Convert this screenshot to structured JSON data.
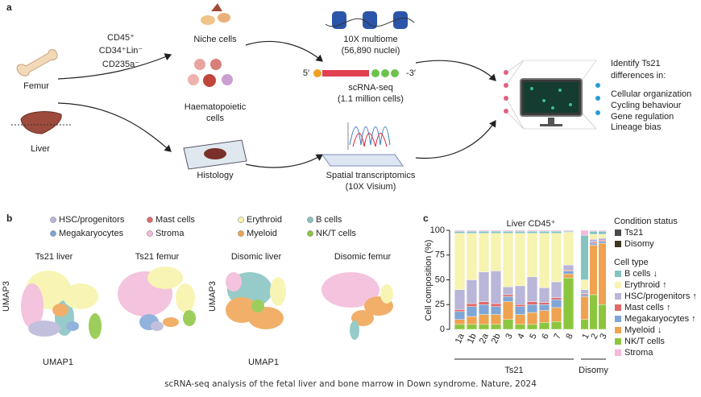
{
  "panel_a": {
    "label": "a",
    "femur": "Femur",
    "liver": "Liver",
    "markers": [
      "CD45⁺",
      "CD34⁺Lin⁻",
      "CD235a⁻"
    ],
    "niche": "Niche cells",
    "haem": [
      "Haematopoietic",
      "cells"
    ],
    "histology": "Histology",
    "multiome": [
      "10X multiome",
      "(56,890 nuclei)"
    ],
    "prime5": "5′",
    "prime3": "-3′",
    "scrna": [
      "scRNA-seq",
      "(1.1 million cells)"
    ],
    "spatial": [
      "Spatial transcriptomics",
      "(10X Visium)"
    ],
    "identify": [
      "Identify Ts21",
      "differences in:"
    ],
    "differences": [
      "Cellular organization",
      "Cycling behaviour",
      "Gene regulation",
      "Lineage bias"
    ]
  },
  "panel_b": {
    "label": "b",
    "legend": [
      {
        "name": "HSC/progenitors",
        "color": "#b9b6d9"
      },
      {
        "name": "Mast cells",
        "color": "#e06a6a"
      },
      {
        "name": "Erythroid",
        "color": "#f7f3a8"
      },
      {
        "name": "B cells",
        "color": "#84c3c0"
      },
      {
        "name": "Megakaryocytes",
        "color": "#7fa6d6"
      },
      {
        "name": "Stroma",
        "color": "#f3b9d9"
      },
      {
        "name": "Myeloid",
        "color": "#efa24f"
      },
      {
        "name": "NK/T cells",
        "color": "#8cc63f"
      }
    ],
    "umaps": [
      "Ts21 liver",
      "Ts21 femur",
      "Disomic liver",
      "Disomic femur"
    ],
    "y_axis": "UMAP3",
    "x_axis": "UMAP1"
  },
  "chart_data": {
    "type": "stacked_bar",
    "label": "c",
    "title": "Liver CD45⁺",
    "y_label": "Cell composition (%)",
    "groups": [
      {
        "name": "Ts21",
        "categories": [
          "1a",
          "1b",
          "2a",
          "2b",
          "3",
          "4",
          "5",
          "6",
          "7",
          "8"
        ]
      },
      {
        "name": "Disomy",
        "categories": [
          "1",
          "2",
          "3"
        ]
      }
    ],
    "ylim": [
      0,
      100
    ],
    "yticks": [
      0,
      25,
      50,
      75,
      100
    ],
    "condition_legend": {
      "title": "Condition status",
      "items": [
        {
          "name": "Ts21",
          "color": "#4a4a4a"
        },
        {
          "name": "Disomy",
          "color": "#3d3623"
        }
      ]
    },
    "legend_title": "Cell type",
    "series": [
      {
        "name": "B cells ↓",
        "color": "#84c3c0",
        "values": [
          2,
          2,
          2,
          2,
          2,
          2,
          2,
          2,
          2,
          1,
          45,
          3,
          3
        ]
      },
      {
        "name": "Erythroid ↑",
        "color": "#f7f3b0",
        "values": [
          57,
          47,
          39,
          38,
          54,
          53,
          44,
          55,
          49,
          33,
          10,
          5,
          4
        ]
      },
      {
        "name": "HSC/progenitors ↑",
        "color": "#b9b6d9",
        "values": [
          20,
          24,
          30,
          33,
          8,
          19,
          25,
          15,
          16,
          5,
          4,
          3,
          2
        ]
      },
      {
        "name": "Mast cells ↑",
        "color": "#e06a6a",
        "values": [
          2,
          3,
          3,
          3,
          2,
          2,
          3,
          2,
          2,
          1,
          1,
          1,
          1
        ]
      },
      {
        "name": "Megakaryocytes ↑",
        "color": "#7fa6d6",
        "values": [
          8,
          10,
          10,
          8,
          5,
          8,
          8,
          6,
          8,
          3,
          2,
          2,
          2
        ]
      },
      {
        "name": "Myeloid ↓",
        "color": "#efa24f",
        "values": [
          5,
          8,
          10,
          10,
          18,
          10,
          12,
          12,
          14,
          4,
          23,
          50,
          62
        ]
      },
      {
        "name": "NK/T cells",
        "color": "#8cc63f",
        "values": [
          5,
          5,
          5,
          5,
          10,
          5,
          5,
          7,
          8,
          52,
          10,
          35,
          25
        ]
      },
      {
        "name": "Stroma",
        "color": "#f3b9d9",
        "values": [
          1,
          1,
          1,
          1,
          1,
          1,
          1,
          1,
          1,
          1,
          5,
          1,
          1
        ]
      }
    ]
  },
  "caption": "scRNA-seq analysis of the fetal liver and bone marrow in Down syndrome. Nature, 2024"
}
